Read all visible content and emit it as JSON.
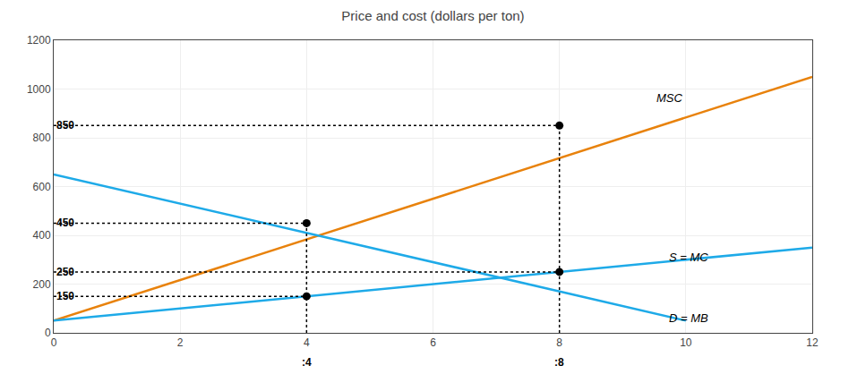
{
  "chart_data": {
    "type": "line",
    "title": "Price and cost (dollars per ton)",
    "xlim": [
      0,
      12
    ],
    "ylim": [
      0,
      1200
    ],
    "xticks": [
      0,
      2,
      4,
      6,
      8,
      10,
      12
    ],
    "yticks": [
      0,
      200,
      400,
      600,
      800,
      1000,
      1200
    ],
    "grid": true,
    "series": [
      {
        "type": "line",
        "color": "#E8820C",
        "line_style": "solid",
        "x": [
          0,
          12
        ],
        "values": [
          50,
          1050
        ]
      },
      {
        "type": "line",
        "color": "#1EAAE8",
        "line_style": "solid",
        "x": [
          0,
          12
        ],
        "values": [
          50,
          350
        ]
      },
      {
        "type": "line",
        "color": "#1EAAE8",
        "line_style": "solid",
        "x": [
          0,
          10
        ],
        "values": [
          650,
          50
        ]
      },
      {
        "type": "line",
        "color": "#000000",
        "line_style": "dotted",
        "x": [
          0,
          4
        ],
        "values": [
          450,
          450
        ]
      },
      {
        "type": "line",
        "color": "#000000",
        "line_style": "dotted",
        "x": [
          4,
          4
        ],
        "values": [
          0,
          450
        ]
      },
      {
        "type": "line",
        "color": "#000000",
        "line_style": "dotted",
        "x": [
          0,
          8
        ],
        "values": [
          250,
          250
        ]
      },
      {
        "type": "line",
        "color": "#000000",
        "line_style": "dotted",
        "x": [
          8,
          8
        ],
        "values": [
          0,
          850
        ]
      },
      {
        "type": "line",
        "color": "#000000",
        "line_style": "dotted",
        "x": [
          0,
          4
        ],
        "values": [
          150,
          150
        ]
      },
      {
        "type": "line",
        "color": "#000000",
        "line_style": "dotted",
        "x": [
          0,
          8
        ],
        "values": [
          850,
          850
        ]
      },
      {
        "type": "scatter",
        "color": "#000000",
        "marker": "circle",
        "x": [
          4,
          8,
          8,
          4
        ],
        "values": [
          450,
          250,
          850,
          150
        ]
      }
    ],
    "annotations": [
      {
        "text": "850",
        "x": 0.02,
        "y": 850
      },
      {
        "text": "450",
        "x": 0.02,
        "y": 450
      },
      {
        "text": "250",
        "x": 0.02,
        "y": 250
      },
      {
        "text": "150",
        "x": 0.02,
        "y": 150
      }
    ],
    "x_annotations": [
      {
        "text": ":4",
        "x": 4
      },
      {
        "text": ":8",
        "x": 8
      }
    ],
    "line_labels": [
      {
        "text": "MSC",
        "x": 9.5,
        "y": 1000
      },
      {
        "text": "S = MC",
        "x": 9.7,
        "y": 310
      },
      {
        "text": "D = MB",
        "x": 9.7,
        "y": 60
      }
    ]
  }
}
